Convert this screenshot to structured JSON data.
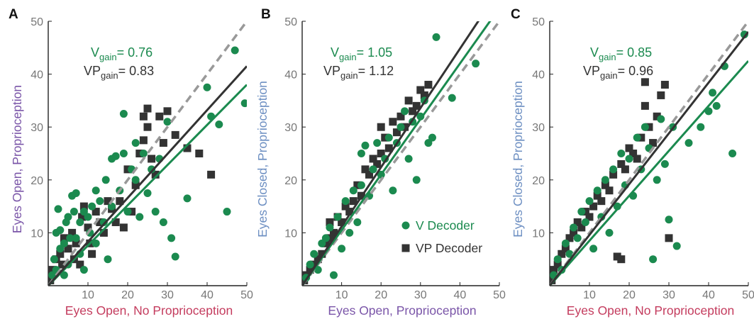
{
  "colors": {
    "v": "#1b8a4f",
    "vp": "#333333",
    "identity": "#999999",
    "eyes_open_label": "#7a55a8",
    "no_prop_label": "#c43c5e",
    "eyes_closed_label": "#6d8fc2",
    "axis": "#222222",
    "tick": "#777777"
  },
  "panels": [
    {
      "letter": "A",
      "xlabel": "Eyes Open, No Proprioception",
      "ylabel": "Eyes Open, Proprioception",
      "v_gain_text": "0.76",
      "vp_gain_text": "0.83",
      "xcolor": "#c43c5e",
      "ycolor": "#7a55a8"
    },
    {
      "letter": "B",
      "xlabel": "Eyes Open, Proprioception",
      "ylabel": "Eyes Closed, Proprioception",
      "v_gain_text": "1.05",
      "vp_gain_text": "1.12",
      "xcolor": "#7a55a8",
      "ycolor": "#6d8fc2"
    },
    {
      "letter": "C",
      "xlabel": "Eyes Open, No Proprioception",
      "ylabel": "Eyes Closed, Proprioception",
      "v_gain_text": "0.85",
      "vp_gain_text": "0.96",
      "xcolor": "#c43c5e",
      "ycolor": "#6d8fc2"
    }
  ],
  "gain_labels": {
    "v": "V",
    "vp": "VP",
    "sub": "gain",
    "eq": "= "
  },
  "legend": {
    "v": "V Decoder",
    "vp": "VP Decoder"
  },
  "chart_data": [
    {
      "type": "scatter",
      "panel": "A",
      "xlabel": "Eyes Open, No Proprioception",
      "ylabel": "Eyes Open, Proprioception",
      "xlim": [
        0,
        50
      ],
      "ylim": [
        0,
        50
      ],
      "xticks": [
        10,
        20,
        30,
        40,
        50
      ],
      "yticks": [
        10,
        20,
        30,
        40,
        50
      ],
      "series": [
        {
          "name": "V Decoder",
          "marker": "circle",
          "gain": 0.76,
          "points": [
            [
              1,
              2
            ],
            [
              1.5,
              5
            ],
            [
              2,
              3
            ],
            [
              2,
              10
            ],
            [
              2.5,
              14.5
            ],
            [
              3,
              7
            ],
            [
              3,
              10.5
            ],
            [
              4,
              2
            ],
            [
              4,
              8
            ],
            [
              4.5,
              12
            ],
            [
              5,
              4
            ],
            [
              5,
              13
            ],
            [
              5.5,
              9
            ],
            [
              6,
              17
            ],
            [
              6.5,
              14
            ],
            [
              7,
              17.5
            ],
            [
              7,
              9
            ],
            [
              8,
              12
            ],
            [
              8,
              6
            ],
            [
              9,
              14
            ],
            [
              9,
              3
            ],
            [
              10,
              13
            ],
            [
              10.5,
              10
            ],
            [
              11,
              15
            ],
            [
              12,
              18
            ],
            [
              12,
              8
            ],
            [
              13,
              16
            ],
            [
              14,
              12
            ],
            [
              14.5,
              20
            ],
            [
              15,
              5
            ],
            [
              16,
              15
            ],
            [
              16,
              24
            ],
            [
              17,
              24.5
            ],
            [
              18,
              18
            ],
            [
              19,
              32.5
            ],
            [
              19,
              25
            ],
            [
              20,
              14
            ],
            [
              21,
              22
            ],
            [
              22,
              27
            ],
            [
              22,
              20
            ],
            [
              23,
              13
            ],
            [
              24,
              25
            ],
            [
              25,
              17.5
            ],
            [
              26,
              22
            ],
            [
              27,
              14
            ],
            [
              28,
              24
            ],
            [
              29,
              12
            ],
            [
              30,
              31
            ],
            [
              31,
              9
            ],
            [
              32,
              5.5
            ],
            [
              35,
              16.5
            ],
            [
              40,
              37.5
            ],
            [
              41,
              32
            ],
            [
              43,
              30.5
            ],
            [
              45,
              14
            ],
            [
              47,
              44.5
            ],
            [
              49.5,
              34.5
            ]
          ]
        },
        {
          "name": "VP Decoder",
          "marker": "square",
          "gain": 0.83,
          "points": [
            [
              0.5,
              1
            ],
            [
              1,
              3
            ],
            [
              2,
              5
            ],
            [
              3,
              6
            ],
            [
              3.5,
              4
            ],
            [
              4,
              9
            ],
            [
              5,
              7
            ],
            [
              6,
              10
            ],
            [
              6.5,
              5
            ],
            [
              7,
              8
            ],
            [
              8,
              4
            ],
            [
              8.5,
              13
            ],
            [
              9,
              15
            ],
            [
              10,
              11
            ],
            [
              10.5,
              8
            ],
            [
              11,
              6
            ],
            [
              12,
              14
            ],
            [
              13,
              12
            ],
            [
              14,
              10
            ],
            [
              15,
              16
            ],
            [
              16,
              14.5
            ],
            [
              17,
              12
            ],
            [
              18,
              16
            ],
            [
              19,
              11
            ],
            [
              20,
              22
            ],
            [
              21,
              14
            ],
            [
              22,
              19
            ],
            [
              23,
              25
            ],
            [
              24,
              27.5
            ],
            [
              24,
              32
            ],
            [
              25,
              30
            ],
            [
              25,
              33.5
            ],
            [
              26,
              24
            ],
            [
              27,
              21
            ],
            [
              28,
              32
            ],
            [
              29,
              27
            ],
            [
              30,
              33
            ],
            [
              32,
              28.5
            ],
            [
              35,
              26
            ],
            [
              38,
              25
            ],
            [
              41,
              21
            ]
          ]
        }
      ]
    },
    {
      "type": "scatter",
      "panel": "B",
      "xlabel": "Eyes Open, Proprioception",
      "ylabel": "Eyes Closed, Proprioception",
      "xlim": [
        0,
        50
      ],
      "ylim": [
        0,
        50
      ],
      "xticks": [
        10,
        20,
        30,
        40,
        50
      ],
      "yticks": [
        10,
        20,
        30,
        40,
        50
      ],
      "series": [
        {
          "name": "V Decoder",
          "marker": "circle",
          "gain": 1.05,
          "points": [
            [
              1,
              1.5
            ],
            [
              2,
              4
            ],
            [
              3,
              6
            ],
            [
              4,
              3
            ],
            [
              5,
              8
            ],
            [
              6,
              9
            ],
            [
              7,
              11
            ],
            [
              8,
              2
            ],
            [
              9,
              13
            ],
            [
              10,
              7
            ],
            [
              11,
              16
            ],
            [
              12,
              10
            ],
            [
              13,
              18
            ],
            [
              14,
              12
            ],
            [
              15,
              19
            ],
            [
              15,
              25
            ],
            [
              16,
              26.5
            ],
            [
              17,
              17
            ],
            [
              18,
              22
            ],
            [
              19,
              27
            ],
            [
              20,
              21
            ],
            [
              21,
              24
            ],
            [
              22,
              28
            ],
            [
              23,
              18
            ],
            [
              24,
              27
            ],
            [
              25,
              30
            ],
            [
              26,
              33
            ],
            [
              27,
              24
            ],
            [
              28,
              31
            ],
            [
              29,
              20
            ],
            [
              30,
              32
            ],
            [
              31,
              35
            ],
            [
              32,
              27
            ],
            [
              33,
              28
            ],
            [
              34,
              47
            ],
            [
              38,
              35.5
            ],
            [
              44,
              42
            ]
          ]
        },
        {
          "name": "VP Decoder",
          "marker": "square",
          "gain": 1.12,
          "points": [
            [
              0.5,
              1
            ],
            [
              1,
              2
            ],
            [
              2,
              3
            ],
            [
              3,
              4
            ],
            [
              4,
              5
            ],
            [
              5,
              6
            ],
            [
              6,
              8
            ],
            [
              7,
              9
            ],
            [
              7,
              12
            ],
            [
              8,
              10
            ],
            [
              9,
              13
            ],
            [
              10,
              12
            ],
            [
              11,
              15
            ],
            [
              12,
              14
            ],
            [
              13,
              16
            ],
            [
              14,
              19
            ],
            [
              15,
              17
            ],
            [
              16,
              22
            ],
            [
              17,
              21
            ],
            [
              18,
              24
            ],
            [
              19,
              23
            ],
            [
              20,
              25
            ],
            [
              20,
              30
            ],
            [
              21,
              28
            ],
            [
              22,
              26
            ],
            [
              23,
              31
            ],
            [
              24,
              29
            ],
            [
              25,
              32
            ],
            [
              26,
              30
            ],
            [
              27,
              35
            ],
            [
              28,
              33
            ],
            [
              29,
              34
            ],
            [
              30,
              37
            ],
            [
              31,
              36
            ],
            [
              32,
              38
            ]
          ]
        }
      ]
    },
    {
      "type": "scatter",
      "panel": "C",
      "xlabel": "Eyes Open, No Proprioception",
      "ylabel": "Eyes Closed, Proprioception",
      "xlim": [
        0,
        50
      ],
      "ylim": [
        0,
        50
      ],
      "xticks": [
        10,
        20,
        30,
        40,
        50
      ],
      "yticks": [
        10,
        20,
        30,
        40,
        50
      ],
      "series": [
        {
          "name": "V Decoder",
          "marker": "circle",
          "gain": 0.85,
          "points": [
            [
              1,
              2
            ],
            [
              2,
              5
            ],
            [
              3,
              3
            ],
            [
              4,
              8
            ],
            [
              5,
              6
            ],
            [
              6,
              11
            ],
            [
              7,
              9
            ],
            [
              8,
              14
            ],
            [
              9,
              12
            ],
            [
              10,
              16
            ],
            [
              11,
              7
            ],
            [
              12,
              18
            ],
            [
              13,
              13
            ],
            [
              14,
              20
            ],
            [
              15,
              10
            ],
            [
              16,
              22
            ],
            [
              17,
              15
            ],
            [
              18,
              25
            ],
            [
              19,
              19
            ],
            [
              20,
              24
            ],
            [
              21,
              17
            ],
            [
              22,
              28
            ],
            [
              23,
              22
            ],
            [
              24,
              30
            ],
            [
              25,
              26
            ],
            [
              26,
              5
            ],
            [
              27,
              20
            ],
            [
              28,
              31.5
            ],
            [
              29,
              23
            ],
            [
              30,
              12.5
            ],
            [
              31,
              30
            ],
            [
              32,
              7.5
            ],
            [
              35,
              27
            ],
            [
              38,
              30
            ],
            [
              40,
              33
            ],
            [
              41,
              36.5
            ],
            [
              42,
              34
            ],
            [
              44,
              41.5
            ],
            [
              46,
              25
            ],
            [
              49,
              47.5
            ]
          ]
        },
        {
          "name": "VP Decoder",
          "marker": "square",
          "gain": 0.96,
          "points": [
            [
              0.5,
              1
            ],
            [
              1,
              3
            ],
            [
              2,
              4
            ],
            [
              3,
              6
            ],
            [
              4,
              7
            ],
            [
              5,
              9
            ],
            [
              6,
              10
            ],
            [
              7,
              12
            ],
            [
              8,
              11
            ],
            [
              9,
              14
            ],
            [
              10,
              13
            ],
            [
              11,
              15
            ],
            [
              12,
              17
            ],
            [
              13,
              16
            ],
            [
              14,
              19
            ],
            [
              15,
              18
            ],
            [
              16,
              21
            ],
            [
              17,
              5.5
            ],
            [
              18,
              23
            ],
            [
              18,
              5
            ],
            [
              19,
              22
            ],
            [
              20,
              26
            ],
            [
              21,
              25
            ],
            [
              22,
              24
            ],
            [
              23,
              28
            ],
            [
              24,
              34
            ],
            [
              24,
              38.5
            ],
            [
              25,
              30
            ],
            [
              26,
              27
            ],
            [
              27,
              32
            ],
            [
              28,
              36
            ],
            [
              29,
              38
            ],
            [
              30,
              9
            ]
          ]
        }
      ]
    }
  ]
}
